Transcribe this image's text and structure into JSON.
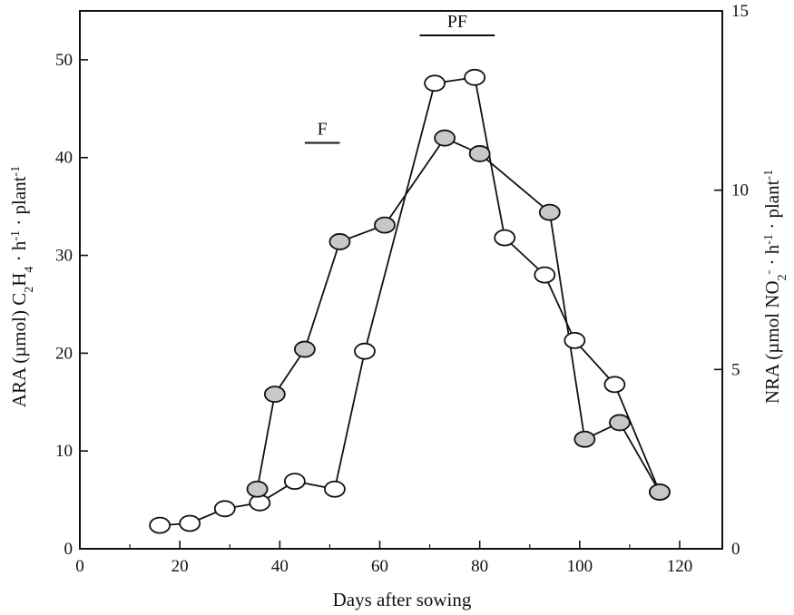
{
  "chart_data": {
    "type": "line",
    "xlabel": "Days after sowing",
    "ylabel_left": {
      "parts": [
        "ARA (µmol) C",
        "2",
        "H",
        "4",
        " · h",
        "-1",
        " · plant",
        "-1"
      ]
    },
    "ylabel_right": {
      "parts": [
        "NRA (µmol NO",
        "2",
        "-",
        " · h",
        "-1",
        " · plant",
        "-1"
      ]
    },
    "xlim": [
      0,
      130
    ],
    "ylim_left": [
      0,
      55
    ],
    "ylim_right": [
      0,
      15
    ],
    "x_ticks": [
      0,
      20,
      40,
      60,
      80,
      100,
      120
    ],
    "y_ticks_left": [
      0,
      10,
      20,
      30,
      40,
      50
    ],
    "y_ticks_right": [
      0,
      5,
      10,
      15
    ],
    "annotations": [
      {
        "text": "F",
        "x_start": 45,
        "x_end": 52,
        "y": 41.5
      },
      {
        "text": "PF",
        "x_start": 68,
        "x_end": 83,
        "y": 52.5
      }
    ],
    "series": [
      {
        "marker": "open-circle",
        "axis": "left",
        "x": [
          16,
          22,
          29,
          36,
          43,
          51,
          57,
          71,
          79,
          85,
          93,
          99,
          107,
          116
        ],
        "y": [
          2.4,
          2.6,
          4.1,
          4.7,
          6.9,
          6.1,
          20.2,
          47.6,
          48.2,
          31.8,
          28.0,
          21.3,
          16.8,
          5.8
        ]
      },
      {
        "marker": "filled-circle",
        "axis": "left",
        "x": [
          35.5,
          39,
          45,
          52,
          61,
          73,
          80,
          94,
          101,
          108,
          116
        ],
        "y": [
          6.1,
          15.8,
          20.4,
          31.4,
          33.1,
          42.0,
          40.4,
          34.4,
          11.2,
          12.9,
          5.8
        ]
      }
    ]
  },
  "colors": {
    "axis": "#111111",
    "filled_marker": "#c8c8c8",
    "open_marker": "#ffffff"
  }
}
